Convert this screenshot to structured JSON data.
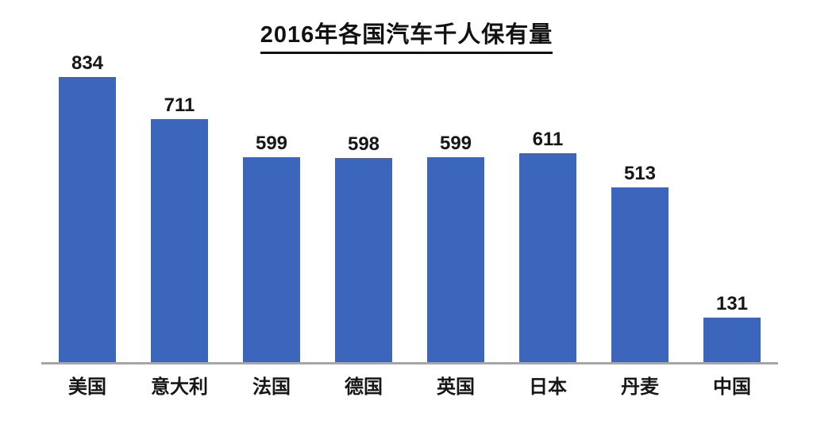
{
  "chart_data": {
    "type": "bar",
    "title": "2016年各国汽车千人保有量",
    "categories": [
      "美国",
      "意大利",
      "法国",
      "德国",
      "英国",
      "日本",
      "丹麦",
      "中国"
    ],
    "values": [
      834,
      711,
      599,
      598,
      599,
      611,
      513,
      131
    ],
    "xlabel": "",
    "ylabel": "",
    "ylim": [
      0,
      870
    ],
    "grid": false,
    "legend": "none",
    "value_labels_shown": true,
    "title_underlined": true,
    "colors": {
      "bar": "#3B66BC",
      "axis_line": "#A6A6A6",
      "text": "#161616",
      "background": "#FFFFFF"
    }
  }
}
